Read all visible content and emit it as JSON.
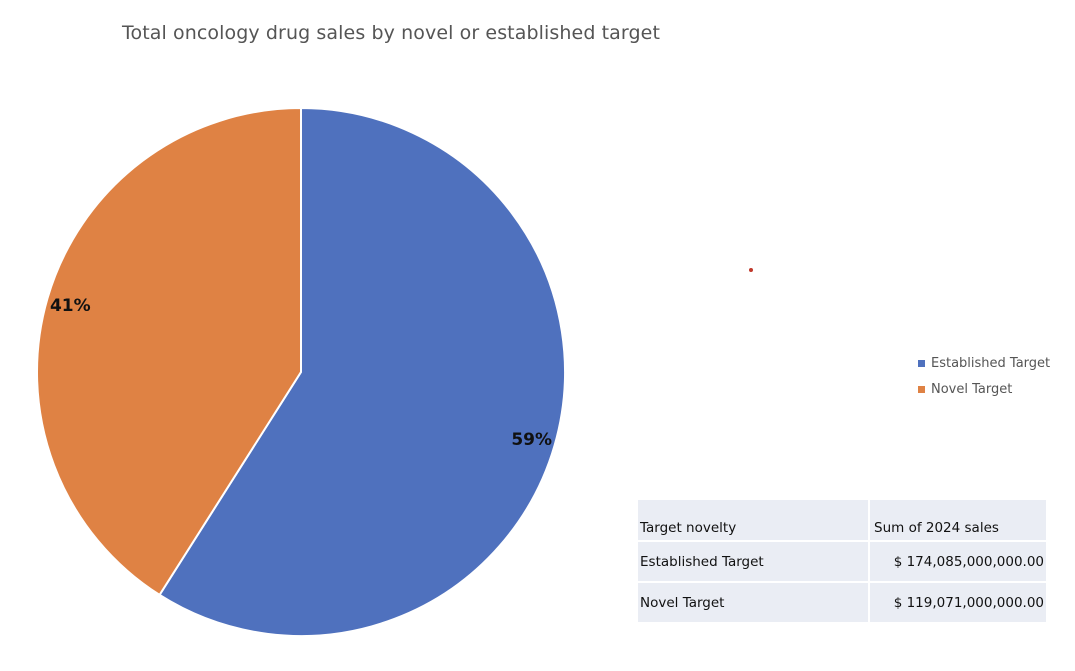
{
  "chart_data": {
    "type": "pie",
    "title": "Total oncology drug sales by novel or established target",
    "categories": [
      "Established Target",
      "Novel Target"
    ],
    "values": [
      59,
      41
    ],
    "data_labels": [
      "59%",
      "41%"
    ],
    "colors": [
      "#4f71be",
      "#df8244"
    ],
    "legend_position": "right"
  },
  "table": {
    "headers": [
      "Target novelty",
      "Sum of 2024 sales"
    ],
    "rows": [
      [
        "Established Target",
        "$ 174,085,000,000.00"
      ],
      [
        "Novel Target",
        "$ 119,071,000,000.00"
      ]
    ]
  }
}
